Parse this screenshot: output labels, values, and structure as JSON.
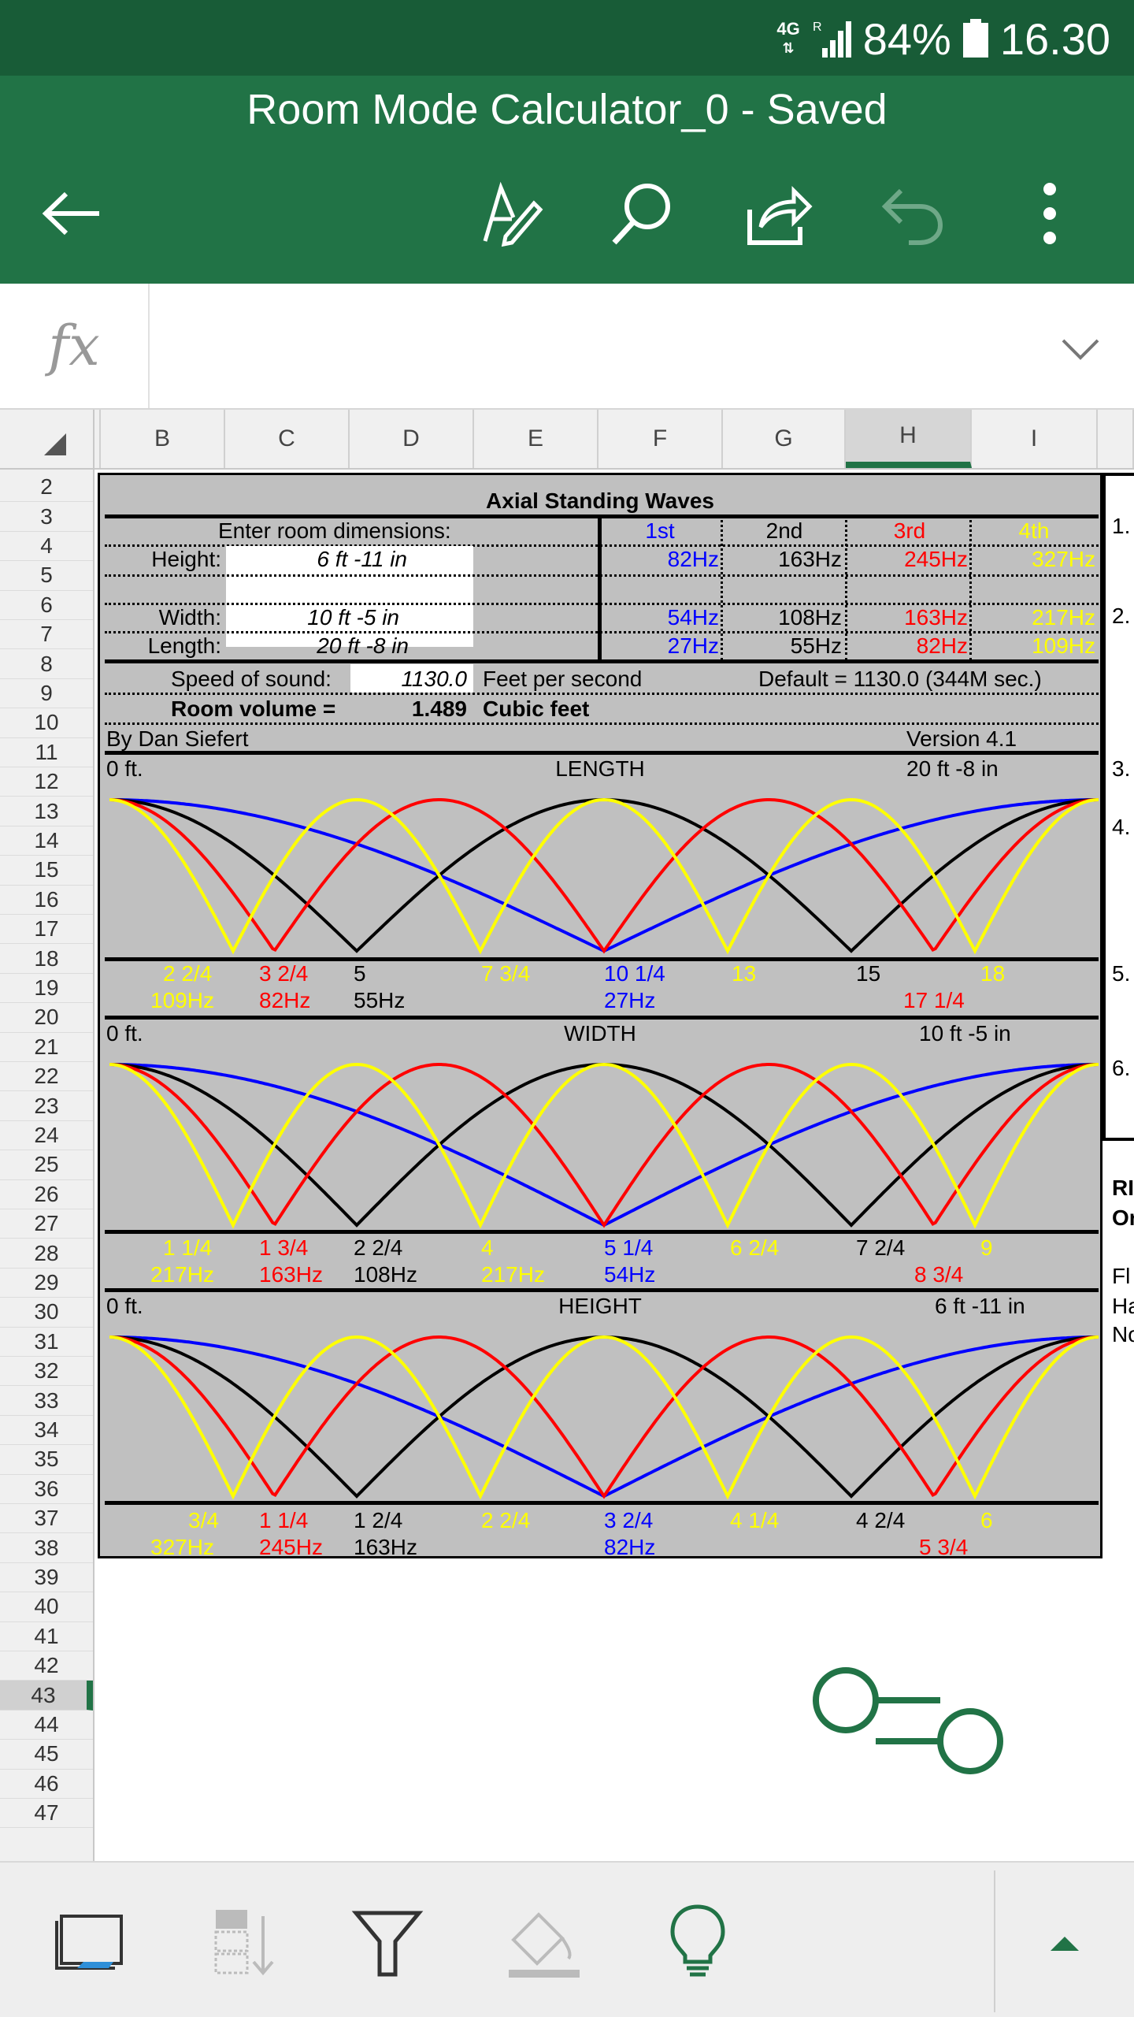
{
  "status": {
    "network": "4G",
    "roaming": "R",
    "battery": "84%",
    "time": "16.30"
  },
  "app": {
    "doc_title": "Room Mode Calculator_0 - Saved"
  },
  "formula": {
    "fx": "fx",
    "value": ""
  },
  "columns": [
    "B",
    "C",
    "D",
    "E",
    "F",
    "G",
    "H",
    "I"
  ],
  "rows": [
    "2",
    "3",
    "4",
    "5",
    "6",
    "7",
    "8",
    "9",
    "10",
    "11",
    "12",
    "13",
    "14",
    "15",
    "16",
    "17",
    "18",
    "19",
    "20",
    "21",
    "22",
    "23",
    "24",
    "25",
    "26",
    "27",
    "28",
    "29",
    "30",
    "31",
    "32",
    "33",
    "34",
    "35",
    "36",
    "37",
    "38",
    "39",
    "40",
    "41",
    "42",
    "43",
    "44",
    "45",
    "46",
    "47"
  ],
  "selected_column": "H",
  "selected_row": "43",
  "sheet": {
    "title": "Axial Standing Waves",
    "enter_label": "Enter room dimensions:",
    "harmonics": [
      "1st",
      "2nd",
      "3rd",
      "4th"
    ],
    "height_label": "Height:",
    "height_value": "6 ft  -11 in",
    "width_label": "Width:",
    "width_value": "10 ft  -5 in",
    "length_label": "Length:",
    "length_value": "20 ft  -8 in",
    "height_hz": [
      "82Hz",
      "163Hz",
      "245Hz",
      "327Hz"
    ],
    "width_hz": [
      "54Hz",
      "108Hz",
      "163Hz",
      "217Hz"
    ],
    "length_hz": [
      "27Hz",
      "55Hz",
      "82Hz",
      "109Hz"
    ],
    "speed_label": "Speed of sound:",
    "speed_value": "1130.0",
    "speed_unit": "Feet per second",
    "speed_default": "Default = 1130.0 (344M sec.)",
    "volume_label": "Room volume =",
    "volume_value": "1.489",
    "volume_unit": "Cubic feet",
    "author": "By Dan Siefert",
    "version": "Version 4.1",
    "length": {
      "start": "0 ft.",
      "title": "LENGTH",
      "end": "20 ft  -8 in",
      "nodes": [
        "2 2/4",
        "3 2/4",
        "5",
        "7 3/4",
        "10 1/4",
        "13",
        "15",
        "18"
      ],
      "freqs": [
        "109Hz",
        "82Hz",
        "55Hz",
        "27Hz",
        "17 1/4"
      ]
    },
    "width": {
      "start": "0 ft.",
      "title": "WIDTH",
      "end": "10 ft  -5 in",
      "nodes": [
        "1 1/4",
        "1 3/4",
        "2 2/4",
        "4",
        "5 1/4",
        "6 2/4",
        "7 2/4",
        "9"
      ],
      "freqs": [
        "217Hz",
        "163Hz",
        "108Hz",
        "217Hz",
        "54Hz",
        "8 3/4"
      ]
    },
    "height": {
      "start": "0 ft.",
      "title": "HEIGHT",
      "end": "6 ft  -11 in",
      "nodes": [
        "3/4",
        "1 1/4",
        "1 2/4",
        "2 2/4",
        "3 2/4",
        "4 1/4",
        "4 2/4",
        "6"
      ],
      "freqs": [
        "327Hz",
        "245Hz",
        "163Hz",
        "82Hz",
        "5 3/4"
      ]
    },
    "right_notes": [
      "1.",
      "2.",
      "3.",
      "4.",
      "5.",
      "6.",
      "RI",
      "Or",
      "Fl",
      "Ha",
      "No"
    ]
  },
  "colors": {
    "first": "#0000ff",
    "second": "#000000",
    "third": "#ff0000",
    "fourth": "#ffff00",
    "accent": "#217346"
  }
}
